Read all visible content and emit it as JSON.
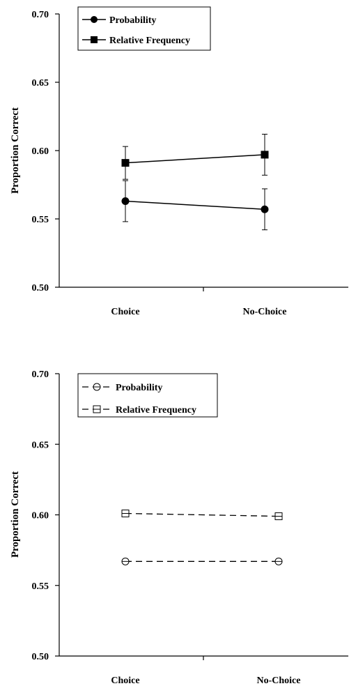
{
  "chart_data": [
    {
      "type": "line",
      "categories": [
        "Choice",
        "No-Choice"
      ],
      "ylabel": "Proportion Correct",
      "ylim": [
        0.5,
        0.7
      ],
      "yticks": [
        "0.50",
        "0.55",
        "0.60",
        "0.65",
        "0.70"
      ],
      "legend_position": "top-left",
      "series": [
        {
          "name": "Probability",
          "marker": "filled-circle",
          "line": "solid",
          "values": [
            0.563,
            0.557
          ],
          "error": [
            0.015,
            0.015
          ]
        },
        {
          "name": "Relative Frequency",
          "marker": "filled-square",
          "line": "solid",
          "values": [
            0.591,
            0.597
          ],
          "error": [
            0.012,
            0.015
          ]
        }
      ]
    },
    {
      "type": "line",
      "categories": [
        "Choice",
        "No-Choice"
      ],
      "ylabel": "Proportion Correct",
      "ylim": [
        0.5,
        0.7
      ],
      "yticks": [
        "0.50",
        "0.55",
        "0.60",
        "0.65",
        "0.70"
      ],
      "legend_position": "top-left",
      "series": [
        {
          "name": "Probability",
          "marker": "open-circle",
          "line": "dashed",
          "values": [
            0.567,
            0.567
          ]
        },
        {
          "name": "Relative Frequency",
          "marker": "open-square",
          "line": "dashed",
          "values": [
            0.601,
            0.599
          ]
        }
      ]
    }
  ],
  "colors": {
    "ink": "#000000",
    "background": "#ffffff"
  }
}
